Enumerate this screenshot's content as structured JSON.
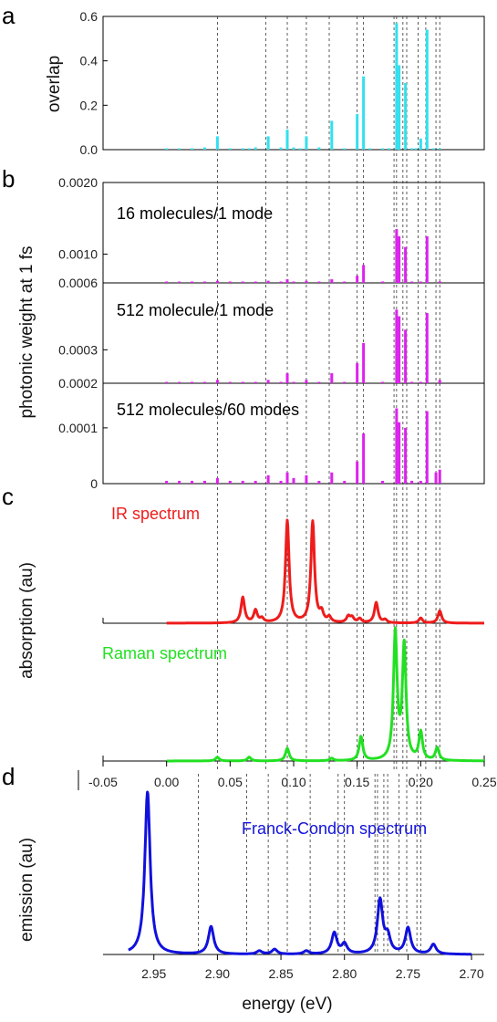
{
  "figure": {
    "panel_letters": [
      "a",
      "b",
      "c",
      "d"
    ],
    "ylabel_a": "overlap",
    "ylabel_b": "photonic weight at 1 fs",
    "ylabel_c": "absorption (au)",
    "ylabel_d": "emission (au)",
    "xlabel_d": "energy (eV)",
    "inset_b1": "16 molecules/1 mode",
    "inset_b2": "512 molecule/1 mode",
    "inset_b3": "512 molecules/60 modes",
    "label_ir": "IR spectrum",
    "label_raman": "Raman spectrum",
    "label_fc": "Franck-Condon spectrum",
    "colors": {
      "overlap": "#33e0ee",
      "photonic": "#dd22ee",
      "ir": "#ee1c1c",
      "raman": "#22e022",
      "fc": "#1111dd"
    }
  },
  "chart_data": [
    {
      "type": "bar",
      "panel": "a",
      "ylabel": "overlap",
      "xlim": [
        -0.05,
        0.25
      ],
      "ylim": [
        0,
        0.6
      ],
      "yticks": [
        "0.0",
        "0.2",
        "0.4",
        "0.6"
      ],
      "x": [
        0.0,
        0.01,
        0.02,
        0.03,
        0.04,
        0.05,
        0.06,
        0.065,
        0.07,
        0.08,
        0.09,
        0.095,
        0.1,
        0.105,
        0.11,
        0.12,
        0.13,
        0.14,
        0.15,
        0.155,
        0.16,
        0.17,
        0.175,
        0.181,
        0.183,
        0.188,
        0.193,
        0.196,
        0.2,
        0.205,
        0.21,
        0.215
      ],
      "values": [
        0.005,
        0.005,
        0.005,
        0.01,
        0.06,
        0.005,
        0.005,
        0.005,
        0.01,
        0.06,
        0.01,
        0.09,
        0.01,
        0.005,
        0.06,
        0.01,
        0.13,
        0.005,
        0.16,
        0.33,
        0.005,
        0.005,
        0.005,
        0.57,
        0.38,
        0.3,
        0.005,
        0.005,
        0.05,
        0.54,
        0.005,
        0.005
      ]
    },
    {
      "type": "bar",
      "panel": "b-top",
      "ylim": [
        0.0006,
        0.002
      ],
      "yticks": [
        "0.0006",
        "0.0010",
        "0.0020"
      ],
      "x": [
        0.0,
        0.01,
        0.02,
        0.03,
        0.04,
        0.05,
        0.06,
        0.07,
        0.08,
        0.09,
        0.095,
        0.1,
        0.11,
        0.12,
        0.13,
        0.14,
        0.15,
        0.155,
        0.17,
        0.181,
        0.183,
        0.188,
        0.193,
        0.2,
        0.205,
        0.215
      ],
      "values": [
        0.0006,
        0.0006,
        0.0006,
        0.0006,
        0.00063,
        0.0006,
        0.0006,
        0.0006,
        0.00063,
        0.0006,
        0.00065,
        0.0006,
        0.00063,
        0.0006,
        0.00065,
        0.0006,
        0.0007,
        0.00085,
        0.0006,
        0.00135,
        0.00125,
        0.0011,
        0.0006,
        0.0006,
        0.00125,
        0.00062
      ]
    },
    {
      "type": "bar",
      "panel": "b-middle",
      "ylim": [
        0.0002,
        0.0005
      ],
      "yticks": [
        "0.0002",
        "0.0003"
      ],
      "x": [
        0.0,
        0.01,
        0.02,
        0.03,
        0.04,
        0.05,
        0.06,
        0.07,
        0.08,
        0.09,
        0.095,
        0.1,
        0.11,
        0.12,
        0.13,
        0.14,
        0.15,
        0.155,
        0.17,
        0.181,
        0.183,
        0.188,
        0.193,
        0.2,
        0.205,
        0.215
      ],
      "values": [
        0.0002,
        0.0002,
        0.0002,
        0.0002,
        0.00021,
        0.0002,
        0.0002,
        0.0002,
        0.00021,
        0.0002,
        0.00023,
        0.0002,
        0.00021,
        0.0002,
        0.00023,
        0.0002,
        0.00026,
        0.00032,
        0.0002,
        0.00042,
        0.0004,
        0.00036,
        0.0002,
        0.0002,
        0.00041,
        0.00021
      ]
    },
    {
      "type": "bar",
      "panel": "b-bottom",
      "ylim": [
        0,
        0.00018
      ],
      "yticks": [
        "0",
        "0.0001"
      ],
      "x": [
        0.0,
        0.01,
        0.02,
        0.03,
        0.04,
        0.05,
        0.06,
        0.07,
        0.08,
        0.09,
        0.095,
        0.1,
        0.11,
        0.12,
        0.13,
        0.14,
        0.15,
        0.155,
        0.17,
        0.181,
        0.183,
        0.188,
        0.193,
        0.2,
        0.205,
        0.212,
        0.215
      ],
      "values": [
        5e-06,
        5e-06,
        5e-06,
        5e-06,
        1e-05,
        5e-06,
        5e-06,
        5e-06,
        1.5e-05,
        5e-06,
        2e-05,
        1e-05,
        1.5e-05,
        5e-06,
        2e-05,
        5e-06,
        4e-05,
        9e-05,
        5e-06,
        0.000135,
        0.00011,
        0.0001,
        5e-06,
        5e-06,
        0.00013,
        2e-05,
        2.5e-05
      ]
    },
    {
      "type": "line",
      "panel": "c-ir",
      "label": "IR spectrum",
      "xlim": [
        -0.05,
        0.25
      ],
      "peaks": [
        [
          0.06,
          0.25
        ],
        [
          0.07,
          0.12
        ],
        [
          0.075,
          0.04
        ],
        [
          0.095,
          1.0
        ],
        [
          0.115,
          0.99
        ],
        [
          0.122,
          0.09
        ],
        [
          0.128,
          0.05
        ],
        [
          0.143,
          0.06
        ],
        [
          0.146,
          0.05
        ],
        [
          0.152,
          0.04
        ],
        [
          0.165,
          0.2
        ],
        [
          0.172,
          0.03
        ],
        [
          0.2,
          0.05
        ],
        [
          0.215,
          0.12
        ]
      ]
    },
    {
      "type": "line",
      "panel": "c-raman",
      "label": "Raman spectrum",
      "xlim": [
        -0.05,
        0.25
      ],
      "xticks": [
        "-0.05",
        "0.00",
        "0.05",
        "0.10",
        "0.15",
        "0.20",
        "0.25"
      ],
      "peaks": [
        [
          0.04,
          0.03
        ],
        [
          0.065,
          0.03
        ],
        [
          0.095,
          0.1
        ],
        [
          0.13,
          0.02
        ],
        [
          0.153,
          0.19
        ],
        [
          0.18,
          1.0
        ],
        [
          0.187,
          0.9
        ],
        [
          0.2,
          0.22
        ],
        [
          0.213,
          0.1
        ]
      ]
    },
    {
      "type": "line",
      "panel": "d",
      "label": "Franck-Condon spectrum",
      "xlabel": "energy (eV)",
      "xlim": [
        2.99,
        2.69
      ],
      "xticks": [
        "2.95",
        "2.90",
        "2.85",
        "2.80",
        "2.75",
        "2.70"
      ],
      "peaks": [
        [
          2.955,
          1.0
        ],
        [
          2.905,
          0.17
        ],
        [
          2.867,
          0.02
        ],
        [
          2.855,
          0.03
        ],
        [
          2.83,
          0.02
        ],
        [
          2.808,
          0.13
        ],
        [
          2.8,
          0.06
        ],
        [
          2.772,
          0.33
        ],
        [
          2.766,
          0.1
        ],
        [
          2.75,
          0.16
        ],
        [
          2.73,
          0.06
        ]
      ]
    }
  ],
  "reference_lines_ev": [
    0.04,
    0.078,
    0.095,
    0.11,
    0.128,
    0.15,
    0.155,
    0.179,
    0.181,
    0.186,
    0.189,
    0.198,
    0.204,
    0.212,
    0.215
  ]
}
